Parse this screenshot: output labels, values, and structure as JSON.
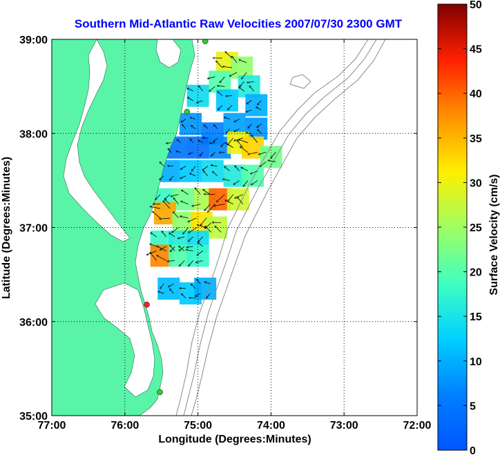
{
  "chart_data": {
    "type": "heatmap",
    "title": "Southern Mid-Atlantic Raw Velocities 2007/07/30 2300 GMT",
    "xlabel": "Longitude (Degrees:Minutes)",
    "ylabel": "Latitude (Degrees:Minutes)",
    "colorbar_label": "Surface Velocity (cm/s)",
    "x_ticks": [
      "77:00",
      "76:00",
      "75:00",
      "74:00",
      "73:00",
      "72:00"
    ],
    "y_ticks": [
      "39:00",
      "38:00",
      "37:00",
      "36:00",
      "35:00"
    ],
    "colorbar_ticks": [
      "50",
      "45",
      "40",
      "35",
      "30",
      "25",
      "20",
      "15",
      "10",
      "5",
      "0"
    ],
    "xlim": [
      -77,
      -72
    ],
    "ylim": [
      35,
      39
    ],
    "clim": [
      0,
      50
    ],
    "grid": true,
    "land_color": "#5af4a8",
    "colormap": "jet",
    "stations": [
      {
        "lon": -74.9,
        "lat": 38.98,
        "color": "#33cc33"
      },
      {
        "lon": -75.15,
        "lat": 38.23,
        "color": "#33cc33"
      },
      {
        "lon": -75.7,
        "lat": 36.18,
        "color": "#ff2020"
      },
      {
        "lon": -75.52,
        "lat": 35.25,
        "color": "#33cc33"
      }
    ],
    "velocity_field": [
      {
        "lon": -74.6,
        "lat": 38.75,
        "speed": 30
      },
      {
        "lon": -74.4,
        "lat": 38.7,
        "speed": 24
      },
      {
        "lon": -74.7,
        "lat": 38.55,
        "speed": 20
      },
      {
        "lon": -74.3,
        "lat": 38.5,
        "speed": 16
      },
      {
        "lon": -75.0,
        "lat": 38.4,
        "speed": 14
      },
      {
        "lon": -74.6,
        "lat": 38.35,
        "speed": 12
      },
      {
        "lon": -74.2,
        "lat": 38.3,
        "speed": 10
      },
      {
        "lon": -75.1,
        "lat": 38.1,
        "speed": 8
      },
      {
        "lon": -74.8,
        "lat": 38.0,
        "speed": 6
      },
      {
        "lon": -74.5,
        "lat": 38.1,
        "speed": 9
      },
      {
        "lon": -74.2,
        "lat": 38.05,
        "speed": 8
      },
      {
        "lon": -75.3,
        "lat": 37.85,
        "speed": 5
      },
      {
        "lon": -75.0,
        "lat": 37.85,
        "speed": 4
      },
      {
        "lon": -74.7,
        "lat": 37.85,
        "speed": 7
      },
      {
        "lon": -74.45,
        "lat": 37.9,
        "speed": 30
      },
      {
        "lon": -74.25,
        "lat": 37.85,
        "speed": 33
      },
      {
        "lon": -75.4,
        "lat": 37.6,
        "speed": 10
      },
      {
        "lon": -75.1,
        "lat": 37.6,
        "speed": 12
      },
      {
        "lon": -74.8,
        "lat": 37.6,
        "speed": 14
      },
      {
        "lon": -74.5,
        "lat": 37.55,
        "speed": 16
      },
      {
        "lon": -74.25,
        "lat": 37.55,
        "speed": 20
      },
      {
        "lon": -75.45,
        "lat": 37.3,
        "speed": 18
      },
      {
        "lon": -75.2,
        "lat": 37.3,
        "speed": 22
      },
      {
        "lon": -74.9,
        "lat": 37.3,
        "speed": 26
      },
      {
        "lon": -74.7,
        "lat": 37.3,
        "speed": 40
      },
      {
        "lon": -74.45,
        "lat": 37.3,
        "speed": 28
      },
      {
        "lon": -75.45,
        "lat": 37.15,
        "speed": 36
      },
      {
        "lon": -75.2,
        "lat": 37.05,
        "speed": 24
      },
      {
        "lon": -74.95,
        "lat": 37.05,
        "speed": 32
      },
      {
        "lon": -74.75,
        "lat": 37.0,
        "speed": 27
      },
      {
        "lon": -75.5,
        "lat": 36.85,
        "speed": 18
      },
      {
        "lon": -75.25,
        "lat": 36.85,
        "speed": 16
      },
      {
        "lon": -75.0,
        "lat": 36.85,
        "speed": 14
      },
      {
        "lon": -75.5,
        "lat": 36.7,
        "speed": 38
      },
      {
        "lon": -75.25,
        "lat": 36.7,
        "speed": 20
      },
      {
        "lon": -75.0,
        "lat": 36.7,
        "speed": 18
      },
      {
        "lon": -75.4,
        "lat": 36.35,
        "speed": 11
      },
      {
        "lon": -75.1,
        "lat": 36.3,
        "speed": 12
      },
      {
        "lon": -74.9,
        "lat": 36.35,
        "speed": 10
      },
      {
        "lon": -74.0,
        "lat": 37.75,
        "speed": 22
      }
    ]
  }
}
